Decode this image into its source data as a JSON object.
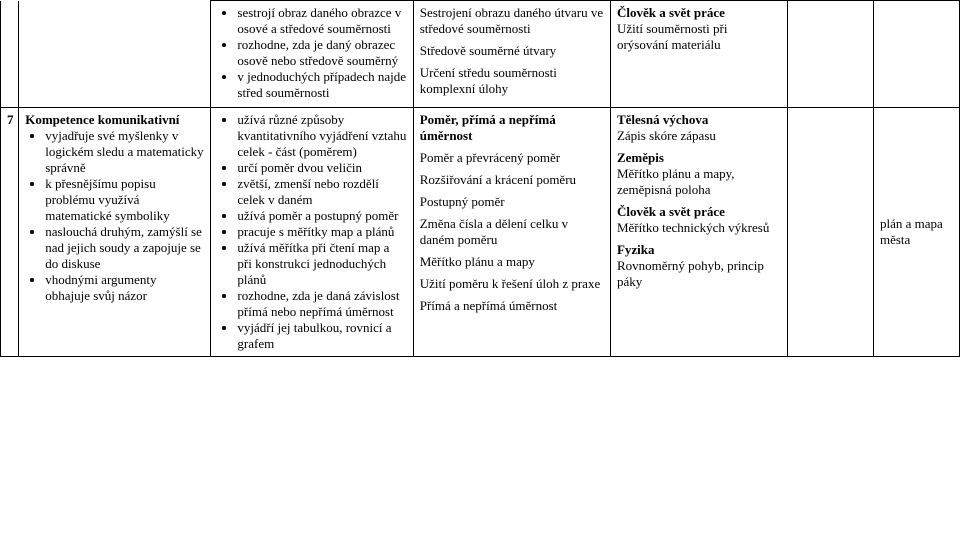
{
  "top": {
    "col3": {
      "items": [
        "sestrojí obraz daného obrazce v osové a středové souměrnosti",
        "rozhodne, zda je daný obrazec osově nebo středově souměrný",
        "v jednoduchých případech najde střed souměrnosti"
      ]
    },
    "col4": {
      "p1": "Sestrojení obrazu daného útvaru ve středové souměrnosti",
      "p2": "Středově souměrné útvary",
      "p3": "Určení středu souměrnosti komplexní úlohy"
    },
    "col5": {
      "title": "Člověk a svět práce",
      "text": "Užití souměrnosti při orýsování materiálu"
    }
  },
  "bottom": {
    "num": "7",
    "col2": {
      "heading": "Kompetence komunikativní",
      "items": [
        "vyjadřuje své myšlenky v logickém sledu a matematicky správně",
        "k přesnějšímu popisu problému využívá matematické symboliky",
        "naslouchá druhým, zamýšlí se nad jejich soudy a zapojuje se do diskuse",
        "vhodnými argumenty obhajuje svůj názor"
      ]
    },
    "col3": {
      "items": [
        "užívá různé způsoby kvantitativního vyjádření vztahu celek - část (poměrem)",
        "určí poměr dvou veličin",
        "zvětší, zmenší nebo rozdělí celek v daném",
        "užívá poměr a postupný poměr",
        "pracuje s měřítky map a plánů",
        "užívá měřítka při čtení map a při konstrukci jednoduchých plánů",
        "rozhodne, zda je daná závislost přímá nebo nepřímá úměrnost",
        "vyjádří jej tabulkou, rovnicí a grafem"
      ]
    },
    "col4": {
      "title": "Poměr, přímá a nepřímá úměrnost",
      "p1": "Poměr a převrácený poměr",
      "p2": "Rozšiřování a krácení poměru",
      "p3": "Postupný poměr",
      "p4": "Změna čísla a dělení celku v daném poměru",
      "p5": "Měřítko plánu a mapy",
      "p6": "Užití poměru k řešení úloh z praxe",
      "p7": "Přímá a nepřímá úměrnost"
    },
    "col5": {
      "s1t": "Tělesná výchova",
      "s1": "Zápis skóre zápasu",
      "s2t": "Zeměpis",
      "s2": "Měřítko plánu a mapy, zeměpisná poloha",
      "s3t": "Člověk a svět práce",
      "s3": "Měřítko technických výkresů",
      "s4t": "Fyzika",
      "s4": "Rovnoměrný pohyb, princip páky"
    },
    "col7": "plán a mapa města"
  }
}
